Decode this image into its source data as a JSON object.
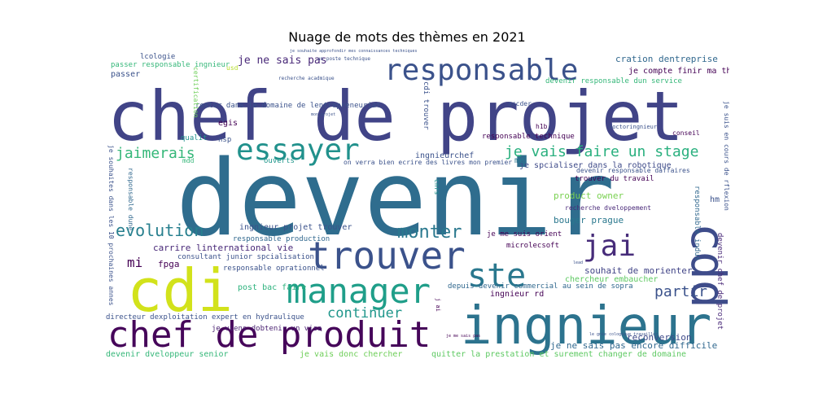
{
  "chart_data": {
    "type": "wordcloud",
    "title": "Nuage de mots des thèmes en 2021",
    "words": [
      {
        "text": "devenir",
        "weight": 100,
        "color": "#2f6d8e"
      },
      {
        "text": "chef de projet",
        "weight": 78,
        "color": "#414487"
      },
      {
        "text": "cdi",
        "weight": 62,
        "color": "#d2e21b"
      },
      {
        "text": "ingnieur",
        "weight": 56,
        "color": "#2c738e"
      },
      {
        "text": "cdd",
        "weight": 50,
        "color": "#3e4c8a"
      },
      {
        "text": "chef de produit",
        "weight": 44,
        "color": "#46065a"
      },
      {
        "text": "trouver",
        "weight": 44,
        "color": "#3b528b"
      },
      {
        "text": "manager",
        "weight": 40,
        "color": "#1f9e89"
      },
      {
        "text": "ste",
        "weight": 38,
        "color": "#2a788e"
      },
      {
        "text": "responsable",
        "weight": 36,
        "color": "#3b528b"
      },
      {
        "text": "essayer",
        "weight": 34,
        "color": "#21918c"
      },
      {
        "text": "jai",
        "weight": 32,
        "color": "#472c7a"
      },
      {
        "text": "monter",
        "weight": 20,
        "color": "#2a788e"
      },
      {
        "text": "evolution",
        "weight": 18,
        "color": "#277f8e"
      },
      {
        "text": "jaimerais",
        "weight": 17,
        "color": "#35b779"
      },
      {
        "text": "je vais faire un stage",
        "weight": 17,
        "color": "#2ab07f"
      },
      {
        "text": "partir",
        "weight": 16,
        "color": "#3b528b"
      },
      {
        "text": "continuer",
        "weight": 15,
        "color": "#1f968b"
      },
      {
        "text": "mi",
        "weight": 14,
        "color": "#440154"
      },
      {
        "text": "je ne sais pas",
        "weight": 11,
        "color": "#482878"
      },
      {
        "text": "cration dentreprise",
        "weight": 10,
        "color": "#31688e"
      },
      {
        "text": "je compte finir ma thse",
        "weight": 9,
        "color": "#440154"
      },
      {
        "text": "je ne sais pas encore difficile",
        "weight": 10,
        "color": "#31688e"
      },
      {
        "text": "reconversion",
        "weight": 10,
        "color": "#3e4a89"
      },
      {
        "text": "souhait de morienter",
        "weight": 10,
        "color": "#414487"
      },
      {
        "text": "product owner",
        "weight": 10,
        "color": "#7ad151"
      },
      {
        "text": "bouger prague",
        "weight": 10,
        "color": "#2a788e"
      },
      {
        "text": "carrire linternational vie",
        "weight": 10,
        "color": "#482878"
      },
      {
        "text": "ingnieur projet trouver",
        "weight": 9,
        "color": "#3b528b"
      },
      {
        "text": "rester dans le domaine de lentrepreneuriat",
        "weight": 8,
        "color": "#3b528b"
      },
      {
        "text": "je spcialiser dans la robotique",
        "weight": 9,
        "color": "#3e4a89"
      },
      {
        "text": "devenir dveloppeur senior",
        "weight": 9,
        "color": "#35b779"
      },
      {
        "text": "je vais donc chercher",
        "weight": 9,
        "color": "#6ece58"
      },
      {
        "text": "quitter la prestation et surement changer de domaine",
        "weight": 9,
        "color": "#5ec962"
      },
      {
        "text": "directeur dexploitation expert en hydraulique",
        "weight": 8,
        "color": "#3b528b"
      },
      {
        "text": "je viens dobtenir un visa",
        "weight": 8,
        "color": "#481f70"
      },
      {
        "text": "post bac faire",
        "weight": 9,
        "color": "#2db27d"
      },
      {
        "text": "ingnieur rd",
        "weight": 9,
        "color": "#440154"
      },
      {
        "text": "chercheur embaucher",
        "weight": 9,
        "color": "#5ec962"
      },
      {
        "text": "depuis devenir commercial au sein de sopra",
        "weight": 8,
        "color": "#31688e"
      },
      {
        "text": "je me suis orient",
        "weight": 8,
        "color": "#440154"
      },
      {
        "text": "microlecsoft",
        "weight": 8,
        "color": "#440154"
      },
      {
        "text": "consultant junior spcialisation",
        "weight": 8,
        "color": "#3b528b"
      },
      {
        "text": "responsable oprationnel",
        "weight": 8,
        "color": "#3b528b"
      },
      {
        "text": "responsable production",
        "weight": 8,
        "color": "#31688e"
      },
      {
        "text": "fpga",
        "weight": 9,
        "color": "#440154"
      },
      {
        "text": "devenir responsable dun service",
        "weight": 8,
        "color": "#35b779"
      },
      {
        "text": "responsable technique",
        "weight": 8,
        "color": "#440154"
      },
      {
        "text": "devenir responsable daffaires",
        "weight": 7,
        "color": "#3b528b"
      },
      {
        "text": "trouver du travail",
        "weight": 8,
        "color": "#440154"
      },
      {
        "text": "recherche dveloppement",
        "weight": 7,
        "color": "#482878"
      },
      {
        "text": "ingnieurchef",
        "weight": 8,
        "color": "#3b528b"
      },
      {
        "text": "on verra bien ecrire des livres mon premier",
        "weight": 7,
        "color": "#3b528b"
      },
      {
        "text": "passer responsable ingnieur",
        "weight": 8,
        "color": "#35b779"
      },
      {
        "text": "passer",
        "weight": 9,
        "color": "#3b528b"
      },
      {
        "text": "lcologie",
        "weight": 8,
        "color": "#3b528b"
      },
      {
        "text": "egis",
        "weight": 9,
        "color": "#440154"
      },
      {
        "text": "qualit",
        "weight": 8,
        "color": "#21918c"
      },
      {
        "text": "nsp",
        "weight": 8,
        "color": "#3b528b"
      },
      {
        "text": "ouverts",
        "weight": 8,
        "color": "#1f968b"
      },
      {
        "text": "cdi trouver",
        "weight": 8,
        "color": "#3b528b"
      },
      {
        "text": "accder",
        "weight": 7,
        "color": "#3b528b"
      },
      {
        "text": "h1b",
        "weight": 7,
        "color": "#440154"
      },
      {
        "text": "conseil",
        "weight": 7,
        "color": "#440154"
      },
      {
        "text": "doctoringnieur",
        "weight": 6,
        "color": "#3b528b"
      },
      {
        "text": "hm",
        "weight": 8,
        "color": "#3b528b"
      },
      {
        "text": "cnrs",
        "weight": 7,
        "color": "#21918c"
      },
      {
        "text": "me",
        "weight": 8,
        "color": "#2a788e"
      },
      {
        "text": "lead",
        "weight": 5,
        "color": "#3b528b"
      },
      {
        "text": "responsable indus",
        "weight": 8,
        "color": "#31688e"
      },
      {
        "text": "devenir chef de projet",
        "weight": 8,
        "color": "#482878"
      },
      {
        "text": "je suis en cours de rflexion",
        "weight": 7,
        "color": "#3b528b"
      },
      {
        "text": "je souhaites dans les 10 prochaines annes",
        "weight": 7,
        "color": "#3b528b"
      },
      {
        "text": "responsable dune",
        "weight": 7,
        "color": "#31688e"
      },
      {
        "text": "mdd",
        "weight": 7,
        "color": "#35b779"
      },
      {
        "text": "certification",
        "weight": 7,
        "color": "#6ece58"
      },
      {
        "text": "usd",
        "weight": 7,
        "color": "#b5de2b"
      },
      {
        "text": "recherche acadmique",
        "weight": 5,
        "color": "#3b528b"
      },
      {
        "text": "un poste technique",
        "weight": 5,
        "color": "#3b528b"
      },
      {
        "text": "je souhaite approfondir mes connaissances techniques",
        "weight": 4,
        "color": "#3b528b"
      },
      {
        "text": "mon projet",
        "weight": 4,
        "color": "#3b528b"
      },
      {
        "text": "je me sais pas",
        "weight": 5,
        "color": "#440154"
      },
      {
        "text": "le gnie cologique travailler",
        "weight": 5,
        "color": "#3b528b"
      },
      {
        "text": "j ai",
        "weight": 6,
        "color": "#440154"
      }
    ]
  }
}
